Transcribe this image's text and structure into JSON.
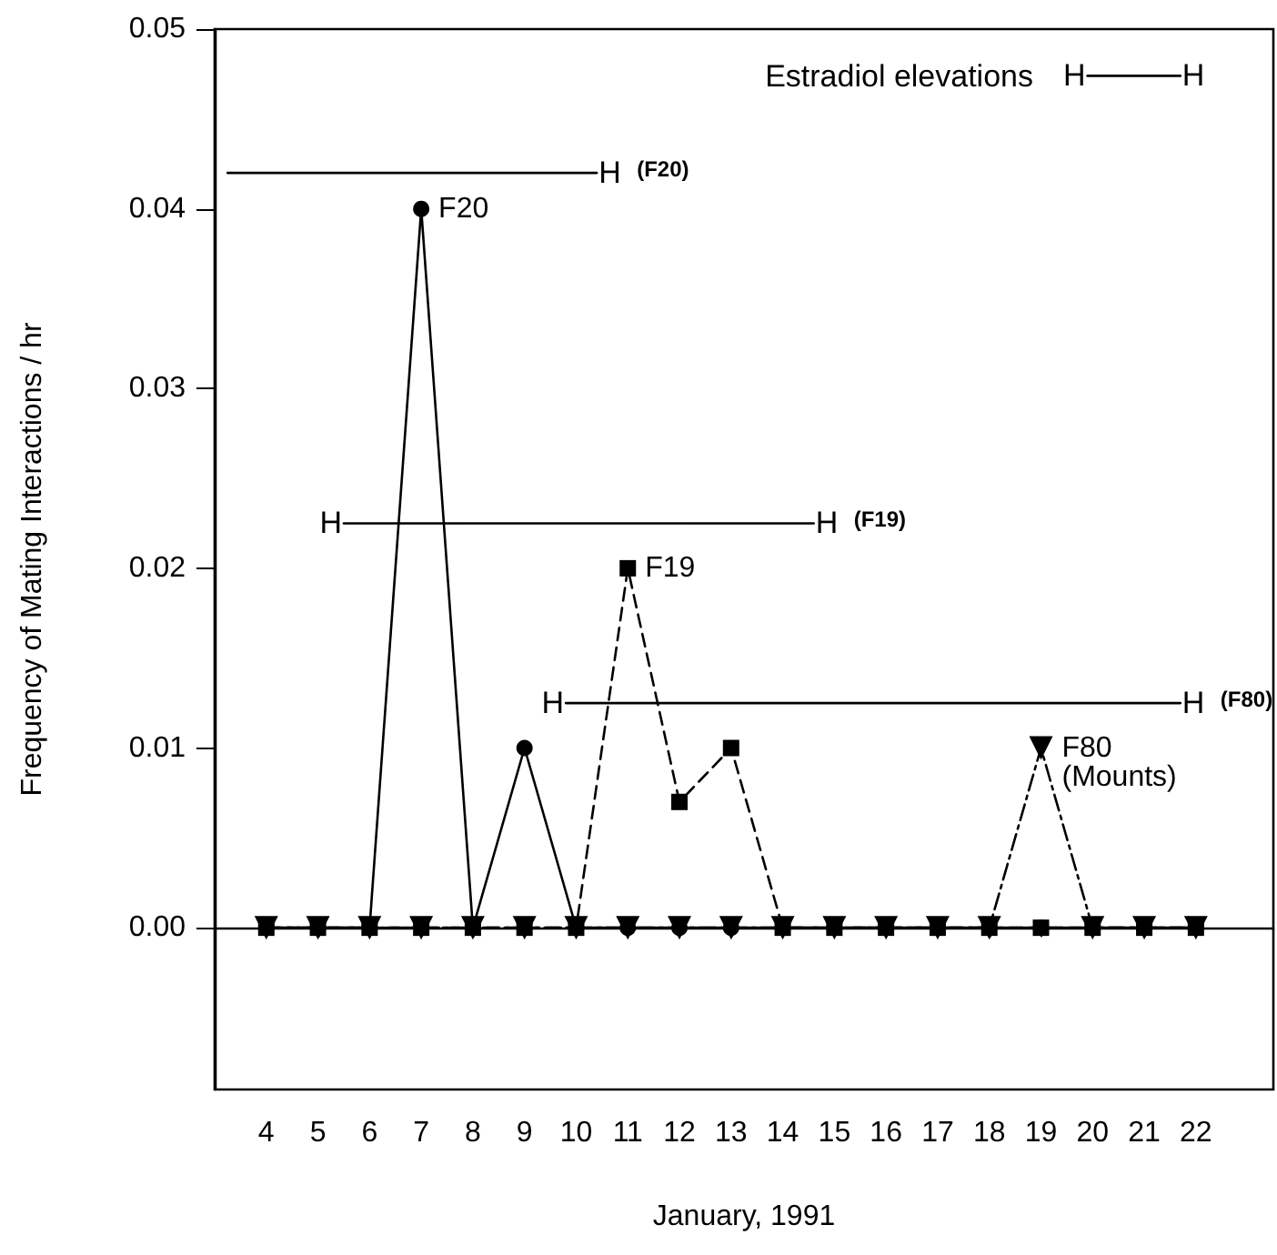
{
  "chart_data": {
    "type": "line",
    "xlabel": "January, 1991",
    "ylabel": "Frequency of Mating Interactions / hr",
    "xlim": [
      3,
      23.5
    ],
    "xticks": [
      4,
      5,
      6,
      7,
      8,
      9,
      10,
      11,
      12,
      13,
      14,
      15,
      16,
      17,
      18,
      19,
      20,
      21,
      22
    ],
    "ylim": [
      -0.009,
      0.05
    ],
    "yticks": [
      {
        "value": 0,
        "label": "0.00"
      },
      {
        "value": 0.01,
        "label": "0.01"
      },
      {
        "value": 0.02,
        "label": "0.02"
      },
      {
        "value": 0.03,
        "label": "0.03"
      },
      {
        "value": 0.04,
        "label": "0.04"
      },
      {
        "value": 0.05,
        "label": "0.05"
      }
    ],
    "grid": false,
    "legend": false,
    "series": [
      {
        "name": "F20",
        "color": "#000000",
        "marker": "circle",
        "line_style": "solid",
        "x": [
          4,
          5,
          6,
          7,
          8,
          9,
          10,
          11,
          12,
          13,
          14,
          15,
          16,
          17,
          18,
          19,
          20,
          21,
          22
        ],
        "values": [
          0,
          0,
          0,
          0.04,
          0,
          0.01,
          0,
          0,
          0,
          0,
          0,
          0,
          0,
          0,
          0,
          0,
          0,
          0,
          0
        ]
      },
      {
        "name": "F19",
        "color": "#000000",
        "marker": "square",
        "line_style": "dashed",
        "x": [
          4,
          5,
          6,
          7,
          8,
          9,
          10,
          11,
          12,
          13,
          14,
          15,
          16,
          17,
          18,
          19,
          20,
          21,
          22
        ],
        "values": [
          0,
          0,
          0,
          0,
          0,
          0,
          0,
          0.02,
          0.007,
          0.01,
          0,
          0,
          0,
          0,
          0,
          0,
          0,
          0,
          0
        ]
      },
      {
        "name": "F80 (Mounts)",
        "color": "#000000",
        "marker": "triangle",
        "line_style": "dashdot",
        "x": [
          4,
          5,
          6,
          7,
          8,
          9,
          10,
          11,
          12,
          13,
          14,
          15,
          16,
          17,
          18,
          19,
          20,
          21,
          22
        ],
        "values": [
          0,
          0,
          0,
          0,
          0,
          0,
          0,
          0,
          0,
          0,
          0,
          0,
          0,
          0,
          0,
          0.01,
          0,
          0,
          0
        ]
      },
      {
        "name": "(F20)",
        "color": "#000000",
        "marker": "none",
        "line_style": "solid",
        "x": [
          3.25,
          10.4
        ],
        "values": [
          0.042,
          0.042
        ],
        "value_labels": [
          null,
          "H"
        ]
      },
      {
        "name": "(F19)",
        "color": "#000000",
        "marker": "none",
        "line_style": "solid",
        "x": [
          5.5,
          14.6
        ],
        "values": [
          0.0225,
          0.0225
        ],
        "value_labels": [
          "H",
          "H"
        ]
      },
      {
        "name": "(F80)",
        "color": "#000000",
        "marker": "none",
        "line_style": "solid",
        "x": [
          9.8,
          21.7
        ],
        "values": [
          0.0125,
          0.0125
        ],
        "value_labels": [
          "H",
          "H"
        ]
      },
      {
        "color": "#000000",
        "marker": "none",
        "line_style": "solid",
        "x": [
          19.9,
          21.7
        ],
        "values": [
          0.0474,
          0.0474
        ],
        "value_labels": [
          "H",
          "H"
        ]
      }
    ],
    "annotations": [
      "Estradiol elevations"
    ]
  }
}
